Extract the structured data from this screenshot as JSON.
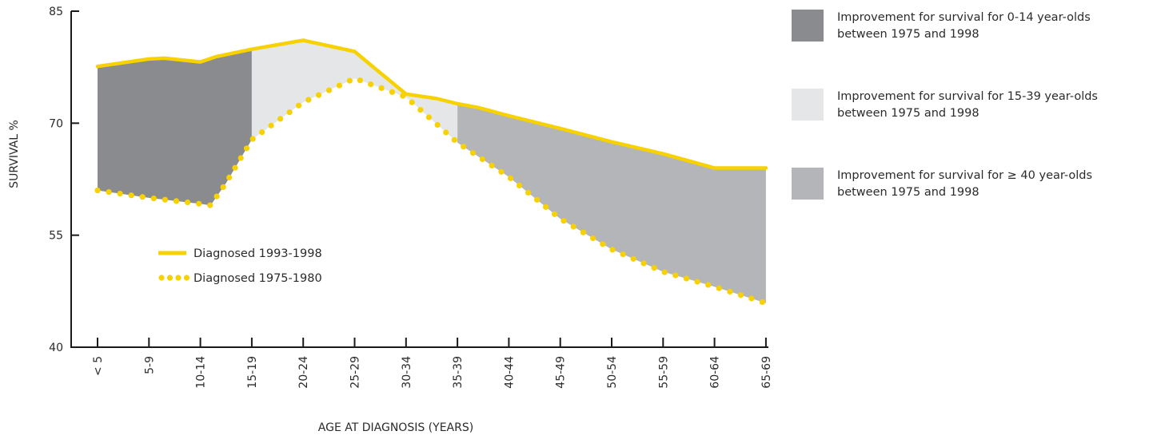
{
  "chart_data": {
    "type": "area",
    "xlabel": "AGE AT DIAGNOSIS (YEARS)",
    "ylabel": "SURVIVAL %",
    "ylim": [
      40,
      85
    ],
    "yticks": [
      "85",
      "70",
      "55",
      "40"
    ],
    "categories": [
      "< 5",
      "5-9",
      "10-14",
      "15-19",
      "20-24",
      "25-29",
      "30-34",
      "35-39",
      "40-44",
      "45-49",
      "50-54",
      "55-59",
      "60-64",
      "65-69"
    ],
    "series": [
      {
        "name": "Diagnosed 1993-1998",
        "style": "solid",
        "color": "#f7d100",
        "points": [
          [
            0,
            77.6
          ],
          [
            1,
            78.6
          ],
          [
            1.3,
            78.7
          ],
          [
            2,
            78.2
          ],
          [
            2.3,
            78.9
          ],
          [
            3,
            79.9
          ],
          [
            4,
            81.1
          ],
          [
            5,
            79.6
          ],
          [
            5.4,
            77.3
          ],
          [
            6,
            73.9
          ],
          [
            6.6,
            73.3
          ],
          [
            7,
            72.6
          ],
          [
            7.4,
            72.1
          ],
          [
            8,
            71.0
          ],
          [
            9,
            69.3
          ],
          [
            10,
            67.5
          ],
          [
            11,
            65.9
          ],
          [
            12,
            64.0
          ],
          [
            13,
            64.0
          ]
        ]
      },
      {
        "name": "Diagnosed 1975-1980",
        "style": "dotted",
        "color": "#f7d100",
        "points": [
          [
            0,
            61.0
          ],
          [
            1,
            60.0
          ],
          [
            2,
            59.2
          ],
          [
            2.2,
            59.0
          ],
          [
            2.5,
            62.0
          ],
          [
            3,
            67.8
          ],
          [
            4,
            72.8
          ],
          [
            5,
            76.0
          ],
          [
            6,
            73.5
          ],
          [
            7,
            67.4
          ],
          [
            8,
            62.8
          ],
          [
            9,
            57.2
          ],
          [
            10,
            53.1
          ],
          [
            11,
            50.1
          ],
          [
            12,
            48.1
          ],
          [
            13,
            45.9
          ]
        ]
      }
    ],
    "shaded_regions": [
      {
        "label": "Improvement for survival for 0-14 year-olds between 1975 and 1998",
        "color": "#8a8b8e",
        "x_range": [
          0,
          3
        ]
      },
      {
        "label": "Improvement for survival for 15-39 year-olds between 1975 and 1998",
        "color": "#e5e6e7",
        "x_range": [
          3,
          7
        ]
      },
      {
        "label": "Improvement for survival for ≥ 40 year-olds between 1975 and 1998",
        "color": "#b4b5b8",
        "x_range": [
          7,
          13
        ]
      }
    ],
    "legend_placement": "inside lower-left"
  },
  "key": {
    "items": [
      {
        "line1": "Improvement for survival for 0-14 year-olds",
        "line2": "between 1975 and 1998",
        "color": "#8a8b8e"
      },
      {
        "line1": "Improvement for survival for 15-39 year-olds",
        "line2": "between 1975 and 1998",
        "color": "#e5e6e7"
      },
      {
        "line1": "Improvement for survival for ≥ 40 year-olds",
        "line2": "between 1975 and 1998",
        "color": "#b4b5b8"
      }
    ]
  }
}
